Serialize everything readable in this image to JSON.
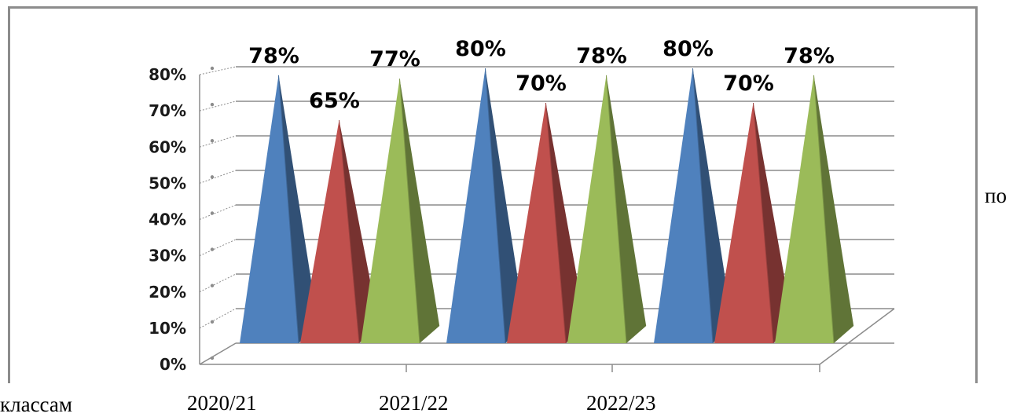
{
  "caption": {
    "right": "по",
    "left": "классам"
  },
  "colors": {
    "series1": "#4f81bd",
    "series2": "#c0504d",
    "series3": "#9bbb59",
    "grid": "#8c8c8c",
    "frame": "#8c8c8c"
  },
  "chart_data": {
    "type": "bar",
    "bar_shape": "3d-pyramid",
    "categories": [
      "2020/21",
      "2021/22",
      "2022/23"
    ],
    "series": [
      {
        "values": [
          78,
          80,
          80
        ]
      },
      {
        "values": [
          65,
          70,
          70
        ]
      },
      {
        "values": [
          77,
          78,
          78
        ]
      }
    ],
    "data_labels": [
      [
        "78%",
        "80%",
        "80%"
      ],
      [
        "65%",
        "70%",
        "70%"
      ],
      [
        "77%",
        "78%",
        "78%"
      ]
    ],
    "y_ticks": [
      "0%",
      "10%",
      "20%",
      "30%",
      "40%",
      "50%",
      "60%",
      "70%",
      "80%"
    ],
    "ylim": [
      0,
      80
    ],
    "grid": true,
    "legend": "none"
  }
}
